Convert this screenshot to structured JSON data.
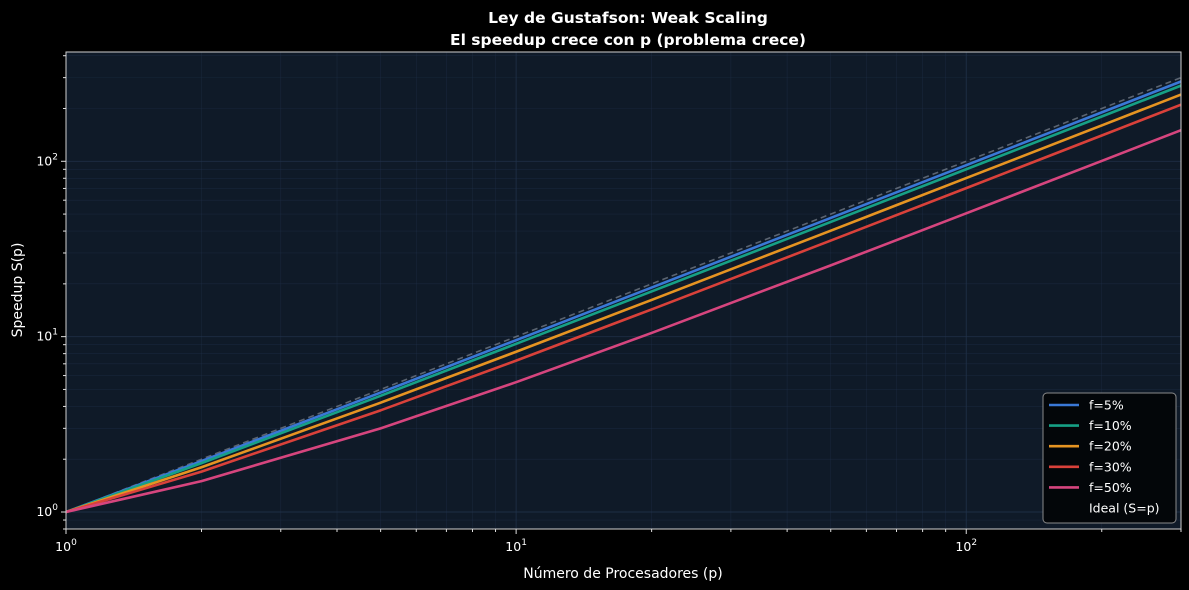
{
  "chart_data": {
    "type": "line",
    "title": "Ley de Gustafson: Weak Scaling",
    "subtitle": "El speedup crece con p (problema crece)",
    "xlabel": "Número de Procesadores (p)",
    "ylabel": "Speedup S(p)",
    "xscale": "log",
    "yscale": "log",
    "xlim": [
      1,
      300
    ],
    "ylim": [
      0.8,
      420
    ],
    "grid": true,
    "legend_position": "bottom-right",
    "x_ticks": [
      {
        "value": 1,
        "base": "10",
        "exp": "0"
      },
      {
        "value": 10,
        "base": "10",
        "exp": "1"
      },
      {
        "value": 100,
        "base": "10",
        "exp": "2"
      }
    ],
    "y_ticks": [
      {
        "value": 1,
        "base": "10",
        "exp": "0"
      },
      {
        "value": 10,
        "base": "10",
        "exp": "1"
      },
      {
        "value": 100,
        "base": "10",
        "exp": "2"
      }
    ],
    "series": [
      {
        "name": "f=5%",
        "serial_fraction": 0.05,
        "color": "#3a78d6",
        "style": "solid",
        "x": [
          1,
          2,
          5,
          10,
          20,
          50,
          100,
          200,
          300
        ],
        "values": [
          1.0,
          1.95,
          4.8,
          9.55,
          19.05,
          47.55,
          95.05,
          190.05,
          285.05
        ]
      },
      {
        "name": "f=10%",
        "serial_fraction": 0.1,
        "color": "#16a085",
        "style": "solid",
        "x": [
          1,
          2,
          5,
          10,
          20,
          50,
          100,
          200,
          300
        ],
        "values": [
          1.0,
          1.9,
          4.6,
          9.1,
          18.1,
          45.1,
          90.1,
          180.1,
          270.1
        ]
      },
      {
        "name": "f=20%",
        "serial_fraction": 0.2,
        "color": "#e69422",
        "style": "solid",
        "x": [
          1,
          2,
          5,
          10,
          20,
          50,
          100,
          200,
          300
        ],
        "values": [
          1.0,
          1.8,
          4.2,
          8.2,
          16.2,
          40.2,
          80.2,
          160.2,
          240.2
        ]
      },
      {
        "name": "f=30%",
        "serial_fraction": 0.3,
        "color": "#d9413a",
        "style": "solid",
        "x": [
          1,
          2,
          5,
          10,
          20,
          50,
          100,
          200,
          300
        ],
        "values": [
          1.0,
          1.7,
          3.8,
          7.3,
          14.3,
          35.3,
          70.3,
          140.3,
          210.3
        ]
      },
      {
        "name": "f=50%",
        "serial_fraction": 0.5,
        "color": "#d6457e",
        "style": "solid",
        "x": [
          1,
          2,
          5,
          10,
          20,
          50,
          100,
          200,
          300
        ],
        "values": [
          1.0,
          1.5,
          3.0,
          5.5,
          10.5,
          25.5,
          50.5,
          100.5,
          150.5
        ]
      },
      {
        "name": "Ideal (S=p)",
        "serial_fraction": 0.0,
        "color": "#9aa3ad",
        "style": "dashed",
        "x": [
          1,
          2,
          5,
          10,
          20,
          50,
          100,
          200,
          300
        ],
        "values": [
          1,
          2,
          5,
          10,
          20,
          50,
          100,
          200,
          300
        ]
      }
    ]
  }
}
